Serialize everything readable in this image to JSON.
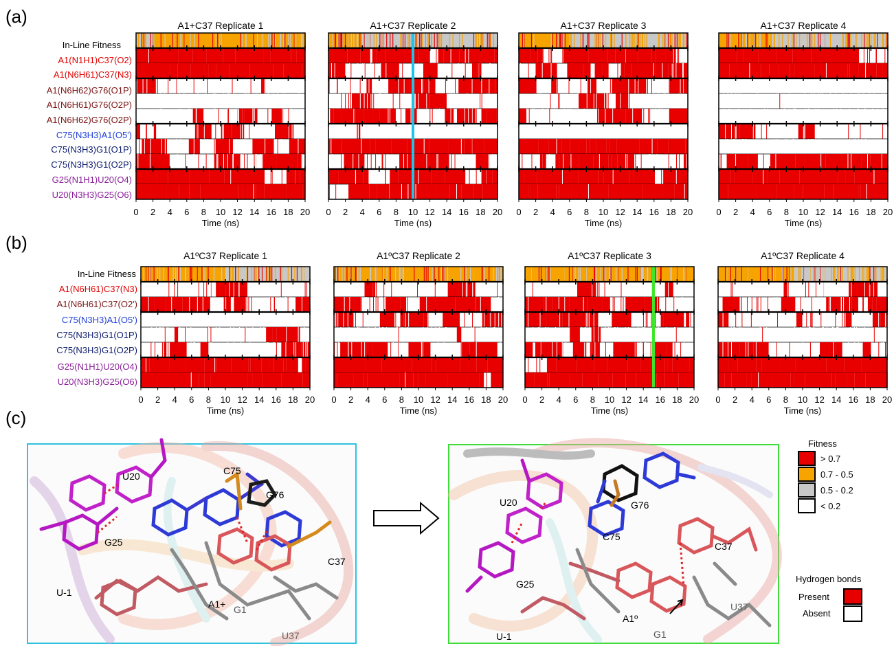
{
  "panels": {
    "a": "(a)",
    "b": "(b)",
    "c": "(c)"
  },
  "time_axis": {
    "label": "Time (ns)",
    "ticks": [
      0,
      2,
      4,
      6,
      8,
      10,
      12,
      14,
      16,
      18,
      20
    ]
  },
  "chart_data": [
    {
      "type": "heatmap",
      "panel": "a",
      "title_prefix": "A1+C37 Replicate",
      "x_range_ns": [
        0,
        20
      ],
      "xlabel": "Time (ns)",
      "rows": [
        {
          "label": "In-Line Fitness",
          "color": "#000000",
          "kind": "fitness"
        },
        {
          "label": "A1(N1H1)C37(O2)",
          "color": "#e00000",
          "kind": "hbond"
        },
        {
          "label": "A1(N6H61)C37(N3)",
          "color": "#e00000",
          "kind": "hbond"
        },
        {
          "label": "A1(N6H62)G76(O1P)",
          "color": "#7a1414",
          "kind": "hbond"
        },
        {
          "label": "A1(N6H61)G76(O2P)",
          "color": "#7a1414",
          "kind": "hbond"
        },
        {
          "label": "A1(N6H62)G76(O2P)",
          "color": "#7a1414",
          "kind": "hbond"
        },
        {
          "label": "C75(N3H3)A1(O5')",
          "color": "#1f3fd6",
          "kind": "hbond"
        },
        {
          "label": "C75(N3H3)G1(O1P)",
          "color": "#0c1a6e",
          "kind": "hbond"
        },
        {
          "label": "C75(N3H3)G1(O2P)",
          "color": "#0c1a6e",
          "kind": "hbond"
        },
        {
          "label": "G25(N1H1)U20(O4)",
          "color": "#8a1f9a",
          "kind": "hbond"
        },
        {
          "label": "U20(N3H3)G25(O6)",
          "color": "#8a1f9a",
          "kind": "hbond"
        }
      ],
      "groups_after_rows": [
        0,
        2,
        5,
        8
      ],
      "replicates": [
        {
          "title": "A1+C37 Replicate 1",
          "fitness_segments": [
            [
              0,
              2.2,
              "g"
            ],
            [
              2.2,
              20,
              "o"
            ]
          ],
          "occupancy": [
            0.98,
            0.98,
            0.15,
            0.02,
            0.35,
            0.45,
            0.25,
            0.5,
            0.92,
            0.97
          ],
          "highlight": null
        },
        {
          "title": "A1+C37 Replicate 2",
          "fitness_segments": [
            [
              0,
              4,
              "o"
            ],
            [
              4,
              20,
              "g"
            ]
          ],
          "occupancy": [
            0.9,
            0.55,
            0.6,
            0.3,
            0.6,
            0.05,
            0.85,
            0.35,
            0.85,
            0.95
          ],
          "highlight": {
            "t": 10.0,
            "color": "#1ec3e6"
          }
        },
        {
          "title": "A1+C37 Replicate 3",
          "fitness_segments": [
            [
              0,
              6,
              "o"
            ],
            [
              6,
              20,
              "g"
            ]
          ],
          "occupancy": [
            0.85,
            0.6,
            0.5,
            0.15,
            0.4,
            0.0,
            0.9,
            0.6,
            0.9,
            0.97
          ],
          "highlight": null
        },
        {
          "title": "A1+C37 Replicate 4",
          "fitness_segments": [
            [
              0,
              6,
              "o"
            ],
            [
              6,
              20,
              "g"
            ]
          ],
          "occupancy": [
            0.98,
            0.97,
            0.0,
            0.05,
            0.0,
            0.35,
            0.0,
            0.7,
            0.9,
            0.97
          ],
          "highlight": null
        }
      ]
    },
    {
      "type": "heatmap",
      "panel": "b",
      "title_prefix": "A1ºC37 Replicate",
      "x_range_ns": [
        0,
        20
      ],
      "xlabel": "Time (ns)",
      "rows": [
        {
          "label": "In-Line Fitness",
          "color": "#000000",
          "kind": "fitness"
        },
        {
          "label": "A1(N6H61)C37(N3)",
          "color": "#e00000",
          "kind": "hbond"
        },
        {
          "label": "A1(N6H61)C37(O2')",
          "color": "#7a1414",
          "kind": "hbond"
        },
        {
          "label": "C75(N3H3)A1(O5')",
          "color": "#1f3fd6",
          "kind": "hbond"
        },
        {
          "label": "C75(N3H3)G1(O1P)",
          "color": "#0c1a6e",
          "kind": "hbond"
        },
        {
          "label": "C75(N3H3)G1(O2P)",
          "color": "#0c1a6e",
          "kind": "hbond"
        },
        {
          "label": "G25(N1H1)U20(O4)",
          "color": "#8a1f9a",
          "kind": "hbond"
        },
        {
          "label": "U20(N3H3)G25(O6)",
          "color": "#8a1f9a",
          "kind": "hbond"
        }
      ],
      "groups_after_rows": [
        0,
        2,
        5
      ],
      "replicates": [
        {
          "title": "A1ºC37 Replicate 1",
          "fitness_segments": [
            [
              0,
              10,
              "o"
            ],
            [
              10,
              20,
              "g"
            ]
          ],
          "occupancy": [
            0.3,
            0.4,
            0.05,
            0.25,
            0.45,
            0.9,
            0.97
          ],
          "highlight": null
        },
        {
          "title": "A1ºC37 Replicate 2",
          "fitness_segments": [
            [
              0,
              20,
              "o"
            ]
          ],
          "occupancy": [
            0.25,
            0.6,
            0.45,
            0.05,
            0.5,
            0.95,
            0.98
          ],
          "highlight": null
        },
        {
          "title": "A1ºC37 Replicate 3",
          "fitness_segments": [
            [
              0,
              20,
              "o"
            ]
          ],
          "occupancy": [
            0.2,
            0.6,
            0.55,
            0.1,
            0.6,
            0.97,
            0.98
          ],
          "highlight": {
            "t": 15.2,
            "color": "#3ee62a"
          }
        },
        {
          "title": "A1ºC37 Replicate 4",
          "fitness_segments": [
            [
              0,
              9,
              "o"
            ],
            [
              9,
              20,
              "g"
            ]
          ],
          "occupancy": [
            0.15,
            0.55,
            0.4,
            0.05,
            0.6,
            0.97,
            0.98
          ],
          "highlight": null
        }
      ]
    }
  ],
  "fitness_legend": {
    "title": "Fitness",
    "items": [
      {
        "label": "> 0.7",
        "color": "#e80000"
      },
      {
        "label": "0.7 - 0.5",
        "color": "#f7a300"
      },
      {
        "label": "0.5 - 0.2",
        "color": "#c8c8c8"
      },
      {
        "label": "< 0.2",
        "color": "#ffffff"
      }
    ]
  },
  "hbond_legend": {
    "title": "Hydrogen bonds",
    "items": [
      {
        "label": "Present",
        "color": "#e80000"
      },
      {
        "label": "Absent",
        "color": "#ffffff"
      }
    ]
  },
  "structures": {
    "left_labels": [
      "U20",
      "C75",
      "G76",
      "G25",
      "C37",
      "U-1",
      "A1+",
      "G1",
      "U37"
    ],
    "right_labels": [
      "G76",
      "U20",
      "C75",
      "C37",
      "G25",
      "A1º",
      "G1",
      "U37",
      "U-1"
    ],
    "left_border_color": "#2ec2e0",
    "right_border_color": "#3fdc3a"
  }
}
